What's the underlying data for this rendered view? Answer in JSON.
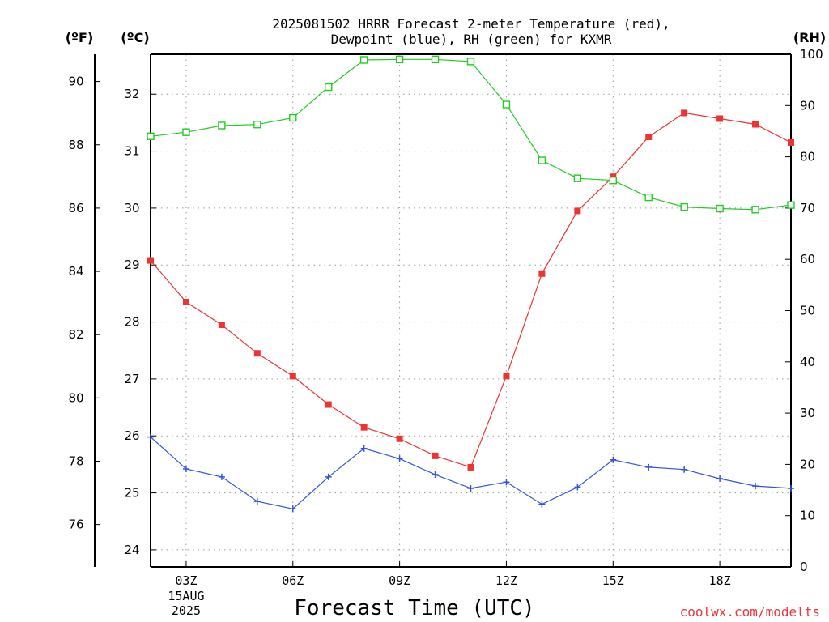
{
  "title_line1": "2025081502 HRRR Forecast 2-meter Temperature (red),",
  "title_line2": "Dewpoint (blue), RH (green) for KXMR",
  "units": {
    "f": "(ºF)",
    "c": "(ºC)",
    "rh": "(RH)"
  },
  "credit": "coolwx.com/modelts",
  "colors": {
    "temperature": "#ee3333",
    "dewpoint": "#3355dd",
    "rh": "#22cc22",
    "grid": "#9a9a9a"
  },
  "chart_data": {
    "type": "line",
    "title": "2025081502 HRRR Forecast 2-meter Temperature (red), Dewpoint (blue), RH (green) for KXMR",
    "xlabel": "Forecast Time (UTC)",
    "x_hours": [
      2,
      3,
      4,
      5,
      6,
      7,
      8,
      9,
      10,
      11,
      12,
      13,
      14,
      15,
      16,
      17,
      18,
      19,
      20
    ],
    "x_ticks": [
      {
        "hour": 3,
        "label": "03Z",
        "sublabel1": "15AUG",
        "sublabel2": "2025"
      },
      {
        "hour": 6,
        "label": "06Z"
      },
      {
        "hour": 9,
        "label": "09Z"
      },
      {
        "hour": 12,
        "label": "12Z"
      },
      {
        "hour": 15,
        "label": "15Z"
      },
      {
        "hour": 18,
        "label": "18Z"
      }
    ],
    "xlim": [
      2,
      20
    ],
    "y_celsius": {
      "ticks": [
        "24",
        "25",
        "26",
        "27",
        "28",
        "29",
        "30",
        "31",
        "32"
      ],
      "ylim": [
        23.7,
        32.7
      ]
    },
    "y_fahrenheit": {
      "ticks": [
        "76",
        "78",
        "80",
        "82",
        "84",
        "86",
        "88",
        "90"
      ]
    },
    "y_rh": {
      "ticks": [
        "0",
        "10",
        "20",
        "30",
        "40",
        "50",
        "60",
        "70",
        "80",
        "90",
        "100"
      ],
      "ylim": [
        0,
        100
      ]
    },
    "grid": true,
    "series": [
      {
        "name": "Temperature (red)",
        "unit": "C",
        "marker": "filled-square",
        "color": "#ee3333",
        "values": [
          29.08,
          28.35,
          27.95,
          27.45,
          27.05,
          26.55,
          26.15,
          25.95,
          25.65,
          25.45,
          27.05,
          28.85,
          29.95,
          30.55,
          31.25,
          31.67,
          31.57,
          31.47,
          31.15
        ]
      },
      {
        "name": "Dewpoint (blue)",
        "unit": "C",
        "marker": "plus",
        "color": "#3355dd",
        "values": [
          25.98,
          25.42,
          25.28,
          24.85,
          24.72,
          25.28,
          25.78,
          25.6,
          25.32,
          25.08,
          25.19,
          24.8,
          25.1,
          25.58,
          25.45,
          25.41,
          25.25,
          25.12,
          25.08
        ]
      },
      {
        "name": "RH (green)",
        "unit": "%",
        "marker": "open-square",
        "color": "#22cc22",
        "values": [
          84.0,
          84.8,
          86.1,
          86.3,
          87.6,
          93.6,
          98.9,
          99.0,
          99.0,
          98.6,
          90.2,
          79.3,
          75.8,
          75.4,
          72.1,
          70.2,
          69.9,
          69.7,
          70.6
        ]
      }
    ]
  }
}
